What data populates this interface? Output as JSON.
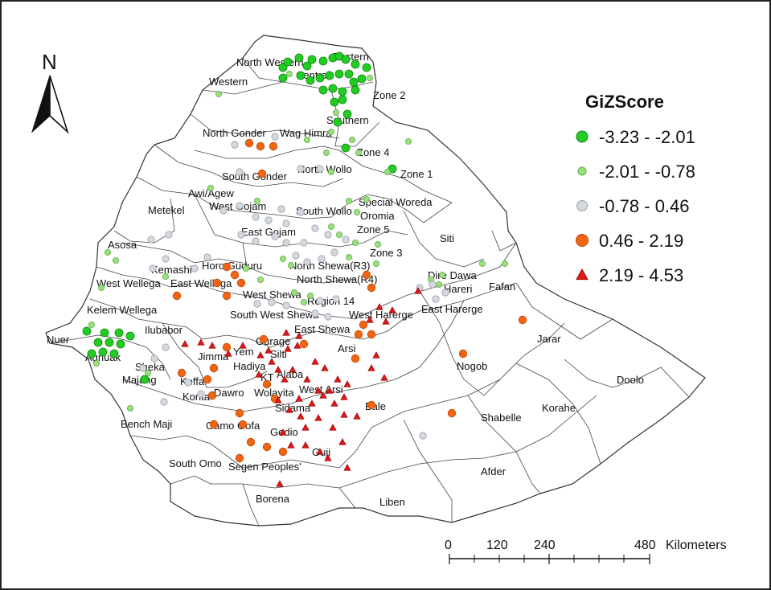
{
  "north_label": "N",
  "legend": {
    "title": "GiZScore",
    "classes": [
      {
        "range": "-3.23 - -2.01",
        "symbol": "circle",
        "color": "#22cc22",
        "stroke": "#118811"
      },
      {
        "range": "-2.01 - -0.78",
        "symbol": "circle",
        "color": "#99e07a",
        "stroke": "#66aa55"
      },
      {
        "range": "-0.78 - 0.46",
        "symbol": "circle",
        "color": "#d4d8df",
        "stroke": "#9aa0aa"
      },
      {
        "range": "0.46 - 2.19",
        "symbol": "circle",
        "color": "#f06414",
        "stroke": "#c04a08"
      },
      {
        "range": "2.19 - 4.53",
        "symbol": "triangle",
        "color": "#e01818",
        "stroke": "#a00c0c"
      }
    ]
  },
  "scale_bar": {
    "ticks": [
      "0",
      "120",
      "240",
      "480"
    ],
    "unit": "Kilometers"
  },
  "regions": [
    "North Western",
    "Eastern",
    "Central",
    "Western",
    "Zone 2",
    "Southern",
    "North Gonder",
    "Wag Himra",
    "Zone 4",
    "Zone 1",
    "North Wollo",
    "South Gonder",
    "Awi/Agew",
    "West Gojam",
    "Metekel",
    "Special Woreda",
    "Oromia",
    "South Wollo",
    "Zone 5",
    "East Gojam",
    "Siti",
    "Asosa",
    "Zone 3",
    "Kemashi",
    "Horo Guduru",
    "North Shewa(R3)",
    "North Shewa(R4)",
    "East Wellega",
    "West Wellega",
    "Dire Dawa",
    "Hareri",
    "Fafan",
    "West Shewa",
    "Region 14",
    "Kelem Wellega",
    "South West Shewa",
    "West Harerge",
    "East Harerge",
    "East Shewa",
    "Ilubabor",
    "Nuer",
    "Gurage",
    "Jarar",
    "Yem",
    "Jimma",
    "Silti",
    "Arsi",
    "Agnuak",
    "Sheka",
    "Hadiya",
    "Nogob",
    "KT",
    "Alaba",
    "Doolo",
    "Keffa",
    "Majang",
    "West Arsi",
    "Dawro",
    "Wolayita",
    "Konta",
    "Bale",
    "Sidama",
    "Korahe",
    "Shabelle",
    "Bench Maji",
    "Gamo Gofa",
    "Gedio",
    "Guji",
    "South Omo",
    "Segen Peoples'",
    "Afder",
    "Borena",
    "Liben"
  ],
  "points": {
    "class1": [
      [
        350,
        82
      ],
      [
        356,
        75
      ],
      [
        370,
        70
      ],
      [
        380,
        80
      ],
      [
        386,
        72
      ],
      [
        400,
        74
      ],
      [
        412,
        70
      ],
      [
        420,
        68
      ],
      [
        428,
        72
      ],
      [
        440,
        78
      ],
      [
        454,
        82
      ],
      [
        350,
        95
      ],
      [
        372,
        92
      ],
      [
        384,
        98
      ],
      [
        396,
        95
      ],
      [
        408,
        92
      ],
      [
        420,
        90
      ],
      [
        432,
        90
      ],
      [
        438,
        100
      ],
      [
        448,
        96
      ],
      [
        400,
        110
      ],
      [
        412,
        108
      ],
      [
        424,
        112
      ],
      [
        440,
        110
      ],
      [
        414,
        125
      ],
      [
        424,
        122
      ],
      [
        430,
        140
      ],
      [
        418,
        150
      ],
      [
        428,
        182
      ],
      [
        486,
        208
      ],
      [
        106,
        410
      ],
      [
        128,
        412
      ],
      [
        146,
        412
      ],
      [
        160,
        416
      ],
      [
        120,
        424
      ],
      [
        134,
        424
      ],
      [
        148,
        426
      ],
      [
        112,
        438
      ],
      [
        126,
        436
      ],
      [
        140,
        438
      ],
      [
        178,
        470
      ]
    ],
    "class2": [
      [
        358,
        90
      ],
      [
        270,
        115
      ],
      [
        458,
        95
      ],
      [
        416,
        138
      ],
      [
        410,
        162
      ],
      [
        436,
        172
      ],
      [
        380,
        172
      ],
      [
        506,
        174
      ],
      [
        444,
        188
      ],
      [
        404,
        188
      ],
      [
        480,
        212
      ],
      [
        410,
        212
      ],
      [
        260,
        232
      ],
      [
        318,
        248
      ],
      [
        432,
        248
      ],
      [
        442,
        262
      ],
      [
        454,
        246
      ],
      [
        410,
        280
      ],
      [
        420,
        290
      ],
      [
        440,
        300
      ],
      [
        350,
        320
      ],
      [
        360,
        328
      ],
      [
        468,
        302
      ],
      [
        432,
        318
      ],
      [
        466,
        326
      ],
      [
        304,
        332
      ],
      [
        322,
        346
      ],
      [
        132,
        312
      ],
      [
        142,
        322
      ],
      [
        204,
        342
      ],
      [
        124,
        356
      ],
      [
        364,
        362
      ],
      [
        376,
        374
      ],
      [
        384,
        366
      ],
      [
        534,
        346
      ],
      [
        544,
        352
      ],
      [
        598,
        326
      ],
      [
        626,
        326
      ],
      [
        548,
        340
      ],
      [
        112,
        402
      ],
      [
        118,
        450
      ],
      [
        182,
        462
      ],
      [
        160,
        506
      ]
    ],
    "class3": [
      [
        290,
        178
      ],
      [
        340,
        168
      ],
      [
        372,
        208
      ],
      [
        396,
        208
      ],
      [
        296,
        212
      ],
      [
        276,
        260
      ],
      [
        296,
        254
      ],
      [
        316,
        268
      ],
      [
        332,
        272
      ],
      [
        348,
        258
      ],
      [
        372,
        262
      ],
      [
        354,
        276
      ],
      [
        298,
        290
      ],
      [
        316,
        298
      ],
      [
        340,
        292
      ],
      [
        354,
        300
      ],
      [
        390,
        282
      ],
      [
        406,
        290
      ],
      [
        376,
        300
      ],
      [
        366,
        316
      ],
      [
        380,
        324
      ],
      [
        398,
        320
      ],
      [
        414,
        312
      ],
      [
        428,
        296
      ],
      [
        186,
        296
      ],
      [
        208,
        290
      ],
      [
        204,
        320
      ],
      [
        188,
        332
      ],
      [
        240,
        332
      ],
      [
        256,
        318
      ],
      [
        318,
        376
      ],
      [
        336,
        374
      ],
      [
        354,
        378
      ],
      [
        396,
        372
      ],
      [
        416,
        370
      ],
      [
        406,
        392
      ],
      [
        390,
        388
      ],
      [
        204,
        430
      ],
      [
        190,
        444
      ],
      [
        176,
        456
      ],
      [
        202,
        498
      ],
      [
        232,
        474
      ],
      [
        248,
        488
      ],
      [
        536,
        352
      ],
      [
        552,
        362
      ],
      [
        540,
        370
      ],
      [
        520,
        356
      ],
      [
        524,
        540
      ]
    ],
    "class4": [
      [
        308,
        176
      ],
      [
        322,
        180
      ],
      [
        338,
        180
      ],
      [
        324,
        214
      ],
      [
        280,
        330
      ],
      [
        290,
        340
      ],
      [
        268,
        350
      ],
      [
        218,
        366
      ],
      [
        280,
        366
      ],
      [
        298,
        350
      ],
      [
        454,
        340
      ],
      [
        460,
        356
      ],
      [
        450,
        402
      ],
      [
        460,
        414
      ],
      [
        444,
        414
      ],
      [
        440,
        444
      ],
      [
        376,
        426
      ],
      [
        326,
        420
      ],
      [
        280,
        430
      ],
      [
        264,
        456
      ],
      [
        224,
        462
      ],
      [
        256,
        470
      ],
      [
        262,
        490
      ],
      [
        330,
        476
      ],
      [
        340,
        494
      ],
      [
        296,
        512
      ],
      [
        300,
        526
      ],
      [
        264,
        526
      ],
      [
        310,
        548
      ],
      [
        330,
        554
      ],
      [
        296,
        568
      ],
      [
        350,
        560
      ],
      [
        574,
        438
      ],
      [
        648,
        396
      ],
      [
        460,
        502
      ],
      [
        560,
        512
      ]
    ],
    "class5": [
      [
        228,
        426
      ],
      [
        248,
        424
      ],
      [
        262,
        428
      ],
      [
        282,
        438
      ],
      [
        300,
        428
      ],
      [
        322,
        440
      ],
      [
        332,
        434
      ],
      [
        356,
        432
      ],
      [
        368,
        428
      ],
      [
        336,
        448
      ],
      [
        320,
        464
      ],
      [
        344,
        458
      ],
      [
        352,
        470
      ],
      [
        362,
        458
      ],
      [
        390,
        448
      ],
      [
        402,
        456
      ],
      [
        380,
        470
      ],
      [
        394,
        484
      ],
      [
        408,
        484
      ],
      [
        418,
        470
      ],
      [
        430,
        476
      ],
      [
        466,
        440
      ],
      [
        460,
        456
      ],
      [
        476,
        468
      ],
      [
        370,
        494
      ],
      [
        386,
        500
      ],
      [
        400,
        490
      ],
      [
        414,
        500
      ],
      [
        426,
        492
      ],
      [
        372,
        516
      ],
      [
        378,
        530
      ],
      [
        394,
        518
      ],
      [
        412,
        530
      ],
      [
        426,
        514
      ],
      [
        442,
        516
      ],
      [
        350,
        536
      ],
      [
        360,
        552
      ],
      [
        378,
        552
      ],
      [
        396,
        560
      ],
      [
        424,
        548
      ],
      [
        406,
        568
      ],
      [
        430,
        580
      ],
      [
        346,
        600
      ],
      [
        458,
        396
      ],
      [
        478,
        398
      ],
      [
        486,
        384
      ],
      [
        518,
        360
      ],
      [
        470,
        380
      ],
      [
        354,
        412
      ],
      [
        370,
        416
      ],
      [
        344,
        496
      ],
      [
        358,
        508
      ]
    ]
  }
}
